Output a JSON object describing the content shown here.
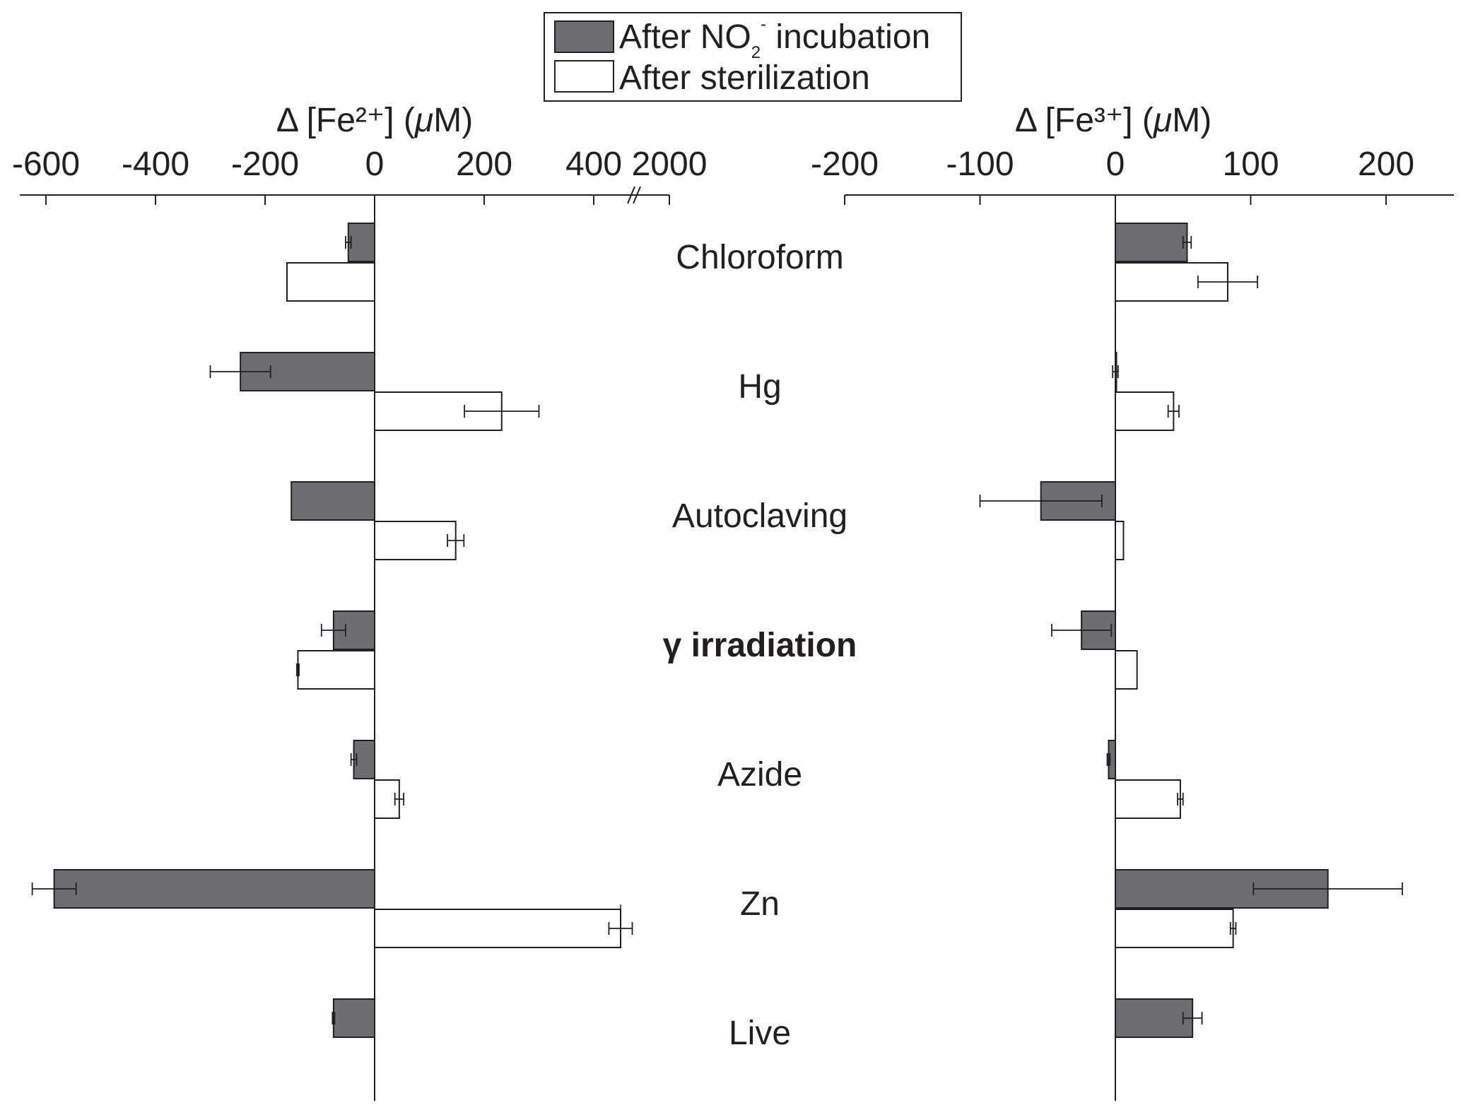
{
  "chart_data": [
    {
      "type": "bar",
      "orientation": "horizontal",
      "panel": "left",
      "xlabel": "Δ [Fe²⁺] (μM)",
      "axis_position": "top",
      "axis_break": "after 400, resumes at 2000",
      "x_ticks": [
        "-600",
        "-400",
        "-200",
        "0",
        "200",
        "400",
        "2000"
      ],
      "xlim": [
        -630,
        2000
      ],
      "categories": [
        "Chloroform",
        "Hg",
        "Autoclaving",
        "γ irradiation",
        "Azide",
        "Zn",
        "Live"
      ],
      "series": [
        {
          "name": "After NO₂⁻ incubation",
          "color": "#6d6e71",
          "values": [
            -48,
            -245,
            -152,
            -75,
            -38,
            -585,
            -75
          ],
          "errors": [
            5,
            55,
            0,
            22,
            5,
            40,
            2
          ]
        },
        {
          "name": "After sterilization",
          "color": "#ffffff",
          "values": [
            -160,
            232,
            148,
            -140,
            45,
            1950,
            null
          ],
          "errors": [
            0,
            68,
            15,
            2,
            8,
            12,
            null
          ]
        }
      ]
    },
    {
      "type": "bar",
      "orientation": "horizontal",
      "panel": "right",
      "xlabel": "Δ [Fe³⁺] (μM)",
      "axis_position": "top",
      "x_ticks": [
        "-200",
        "-100",
        "0",
        "100",
        "200"
      ],
      "xlim": [
        -200,
        250
      ],
      "categories": [
        "Chloroform",
        "Hg",
        "Autoclaving",
        "γ irradiation",
        "Azide",
        "Zn",
        "Live"
      ],
      "series": [
        {
          "name": "After NO₂⁻ incubation",
          "color": "#6d6e71",
          "values": [
            53,
            0,
            -55,
            -25,
            -5,
            157,
            57
          ],
          "errors": [
            3,
            2,
            45,
            22,
            1,
            55,
            7
          ]
        },
        {
          "name": "After sterilization",
          "color": "#ffffff",
          "values": [
            83,
            43,
            6,
            16,
            48,
            87,
            null
          ],
          "errors": [
            22,
            4,
            0,
            0,
            2,
            2,
            null
          ]
        }
      ]
    }
  ],
  "legend": {
    "items": [
      {
        "prefix": "After NO",
        "sub": "2",
        "sup": "-",
        "suffix": " incubation"
      },
      {
        "prefix": "After sterilization",
        "sub": "",
        "sup": "",
        "suffix": ""
      }
    ]
  },
  "left_axis_title": {
    "prefix": "Δ [Fe²⁺] (",
    "italic": "μ",
    "suffix": "M)"
  },
  "right_axis_title": {
    "prefix": "Δ [Fe³⁺] (",
    "italic": "μ",
    "suffix": "M)"
  },
  "emphasized_category": "γ irradiation"
}
